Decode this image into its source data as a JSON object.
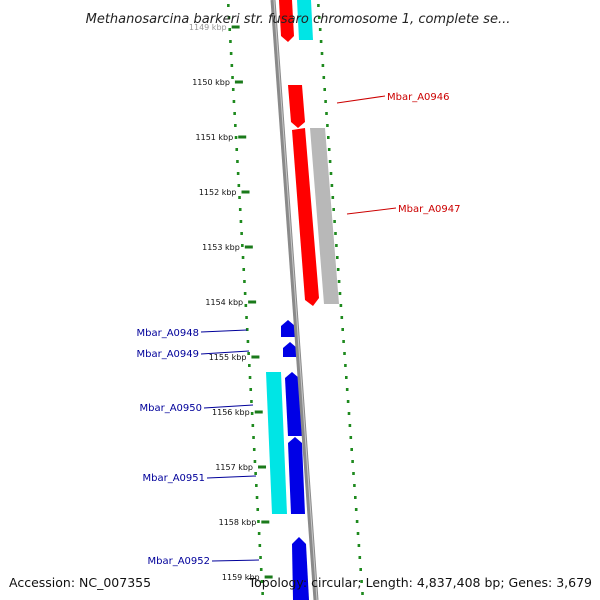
{
  "title": "Methanosarcina barkeri str. fusaro chromosome 1, complete se...",
  "footer": {
    "accession": "Accession: NC_007355",
    "summary": "Topology: circular; Length: 4,837,408 bp; Genes: 3,679"
  },
  "colors": {
    "backbone": "#8a8a8a",
    "tick": "#1a7a1a",
    "dot_track": "#1e8a1e",
    "gene_red": "#ff0000",
    "gene_blue": "#0000e6",
    "gene_cyan": "#00e5e5",
    "gene_gray": "#b8b8b8",
    "label_red": "#cc0000",
    "label_blue": "#00009a"
  },
  "ticks": [
    {
      "label": "1149 kbp",
      "faded": true
    },
    {
      "label": "1150 kbp"
    },
    {
      "label": "1151 kbp"
    },
    {
      "label": "1152 kbp"
    },
    {
      "label": "1153 kbp"
    },
    {
      "label": "1154 kbp"
    },
    {
      "label": "1155 kbp"
    },
    {
      "label": "1156 kbp"
    },
    {
      "label": "1157 kbp"
    },
    {
      "label": "1158 kbp"
    },
    {
      "label": "1159 kbp"
    }
  ],
  "genes": [
    {
      "name": "Mbar_A0946",
      "color": "label_red"
    },
    {
      "name": "Mbar_A0947",
      "color": "label_red"
    },
    {
      "name": "Mbar_A0948",
      "color": "label_blue"
    },
    {
      "name": "Mbar_A0949",
      "color": "label_blue"
    },
    {
      "name": "Mbar_A0950",
      "color": "label_blue"
    },
    {
      "name": "Mbar_A0951",
      "color": "label_blue"
    },
    {
      "name": "Mbar_A0952",
      "color": "label_blue"
    }
  ]
}
